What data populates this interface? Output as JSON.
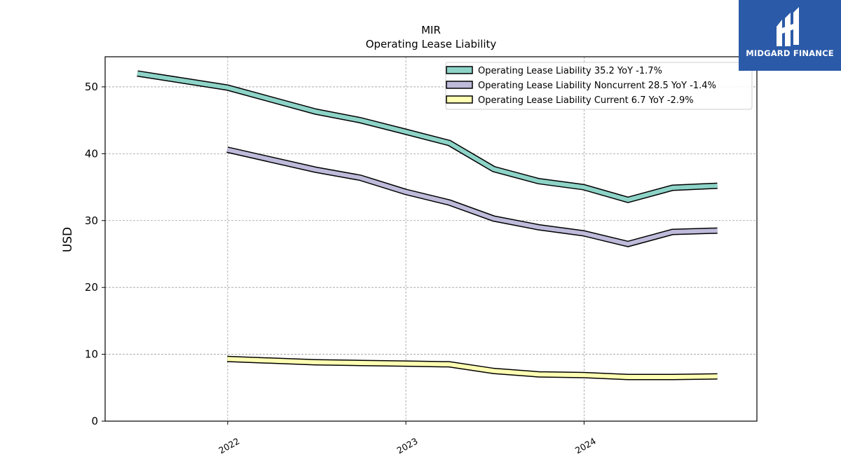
{
  "brand": {
    "name": "MIDGARD FINANCE",
    "bg_color": "#2b5aa8"
  },
  "chart_data": {
    "type": "line",
    "title": "MIR",
    "subtitle": "Operating Lease Liability",
    "ylabel": "USD",
    "xlabel": "",
    "ylim": [
      0,
      54.5
    ],
    "yticks": [
      0,
      10,
      20,
      30,
      40,
      50
    ],
    "xticks": [
      "2022",
      "2023",
      "2024"
    ],
    "x_range": [
      "2021-04-25",
      "2024-12-20"
    ],
    "grid": true,
    "legend_position": "top-right",
    "series": [
      {
        "name": "Operating Lease Liability",
        "legend": "Operating Lease Liability  35.2 YoY -1.7%",
        "color": "#8dd3c7",
        "x": [
          "2021-06-30",
          "2021-12-31",
          "2022-06-30",
          "2022-09-30",
          "2022-12-31",
          "2023-03-31",
          "2023-06-30",
          "2023-09-30",
          "2023-12-31",
          "2024-03-31",
          "2024-06-30",
          "2024-09-30"
        ],
        "y": [
          52.0,
          49.9,
          46.3,
          45.0,
          43.3,
          41.6,
          37.7,
          35.9,
          35.0,
          33.1,
          34.9,
          35.2
        ]
      },
      {
        "name": "Operating Lease Liability Noncurrent",
        "legend": "Operating Lease Liability Noncurrent  28.5 YoY -1.4%",
        "color": "#bebada",
        "x": [
          "2021-12-31",
          "2022-06-30",
          "2022-09-30",
          "2022-12-31",
          "2023-03-31",
          "2023-06-30",
          "2023-09-30",
          "2023-12-31",
          "2024-03-31",
          "2024-06-30",
          "2024-09-30"
        ],
        "y": [
          40.6,
          37.6,
          36.4,
          34.3,
          32.7,
          30.3,
          29.0,
          28.1,
          26.5,
          28.3,
          28.5
        ]
      },
      {
        "name": "Operating Lease Liability Current",
        "legend": "Operating Lease Liability Current  6.7 YoY -2.9%",
        "color": "#ffffb3",
        "x": [
          "2021-12-31",
          "2022-06-30",
          "2022-09-30",
          "2022-12-31",
          "2023-03-31",
          "2023-06-30",
          "2023-09-30",
          "2023-12-31",
          "2024-03-31",
          "2024-06-30",
          "2024-09-30"
        ],
        "y": [
          9.3,
          8.8,
          8.7,
          8.6,
          8.5,
          7.5,
          7.0,
          6.9,
          6.6,
          6.6,
          6.7
        ]
      }
    ]
  }
}
